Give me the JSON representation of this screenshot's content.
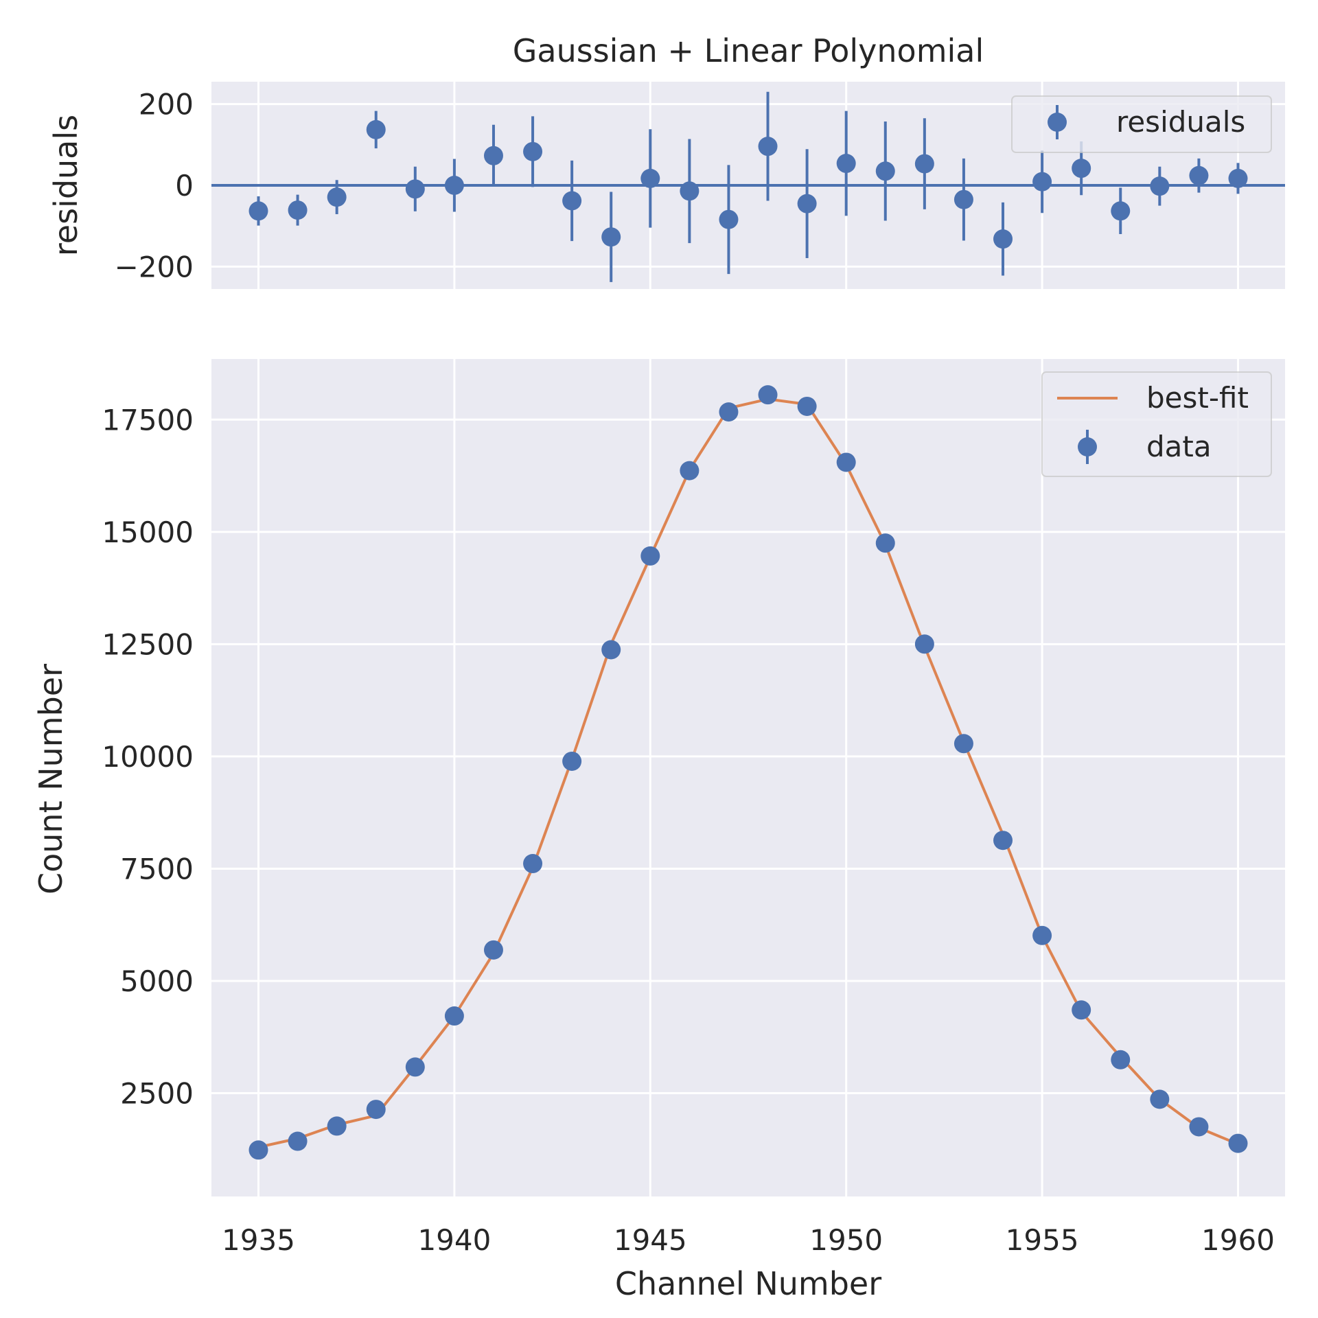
{
  "chart_data": [
    {
      "type": "scatter",
      "title": "Gaussian + Linear Polynomial",
      "xlabel": "",
      "ylabel": "residuals",
      "xlim": [
        1933.8,
        1961.2
      ],
      "ylim": [
        -255,
        255
      ],
      "yticks": [
        200,
        0,
        -200
      ],
      "ytick_labels": [
        "200",
        "0",
        "−200"
      ],
      "xticks": [
        1935,
        1940,
        1945,
        1950,
        1955,
        1960
      ],
      "grid": true,
      "legend_position": "top-right",
      "series": [
        {
          "name": "residuals",
          "color": "#4c72b0",
          "x": [
            1935,
            1936,
            1937,
            1938,
            1939,
            1940,
            1941,
            1942,
            1943,
            1944,
            1945,
            1946,
            1947,
            1948,
            1949,
            1950,
            1951,
            1952,
            1953,
            1954,
            1955,
            1956,
            1957,
            1958,
            1959,
            1960
          ],
          "y": [
            -63,
            -61,
            -29,
            137,
            -9,
            0,
            73,
            83,
            -38,
            -127,
            17,
            -14,
            -84,
            96,
            -45,
            54,
            35,
            53,
            -35,
            -132,
            9,
            42,
            -63,
            -2,
            24,
            17
          ],
          "yerr": [
            36,
            38,
            42,
            46,
            55,
            65,
            76,
            87,
            99,
            111,
            121,
            128,
            134,
            134,
            134,
            129,
            122,
            112,
            101,
            90,
            77,
            66,
            57,
            48,
            42,
            38
          ]
        }
      ],
      "reference_line": {
        "y": 0,
        "color": "#4c72b0"
      }
    },
    {
      "type": "scatter",
      "title": "",
      "xlabel": "Channel Number",
      "ylabel": "Count Number",
      "xlim": [
        1933.8,
        1961.2
      ],
      "ylim": [
        200,
        18850
      ],
      "yticks": [
        2500,
        5000,
        7500,
        10000,
        12500,
        15000,
        17500
      ],
      "xticks": [
        1935,
        1940,
        1945,
        1950,
        1955,
        1960
      ],
      "grid": true,
      "legend_position": "top-right",
      "series": [
        {
          "name": "best-fit",
          "kind": "line",
          "color": "#dd8452",
          "x": [
            1935,
            1936,
            1937,
            1938,
            1939,
            1940,
            1941,
            1942,
            1943,
            1944,
            1945,
            1946,
            1947,
            1948,
            1949,
            1950,
            1951,
            1952,
            1953,
            1954,
            1955,
            1956,
            1957,
            1958,
            1959,
            1960
          ],
          "y": [
            1298,
            1491,
            1797,
            2003,
            3092,
            4220,
            5617,
            7531,
            9930,
            12503,
            14447,
            16378,
            17755,
            17957,
            17841,
            16496,
            14716,
            12449,
            10320,
            8263,
            6003,
            4312,
            3308,
            2367,
            1728,
            1366
          ]
        },
        {
          "name": "data",
          "kind": "errorbar",
          "color": "#4c72b0",
          "x": [
            1935,
            1936,
            1937,
            1938,
            1939,
            1940,
            1941,
            1942,
            1943,
            1944,
            1945,
            1946,
            1947,
            1948,
            1949,
            1950,
            1951,
            1952,
            1953,
            1954,
            1955,
            1956,
            1957,
            1958,
            1959,
            1960
          ],
          "y": [
            1235,
            1430,
            1768,
            2140,
            3083,
            4220,
            5690,
            7614,
            9892,
            12376,
            14464,
            16364,
            17671,
            18053,
            17796,
            16550,
            14751,
            12502,
            10285,
            8131,
            6012,
            4354,
            3245,
            2365,
            1752,
            1383
          ]
        }
      ]
    }
  ]
}
